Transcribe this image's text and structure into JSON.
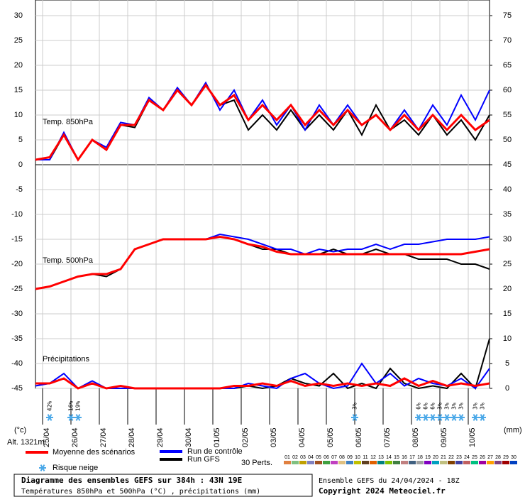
{
  "chart_data": {
    "type": "line",
    "xlim": [
      0,
      384
    ],
    "xticks": [
      {
        "value": 6,
        "label": "25/04"
      },
      {
        "value": 30,
        "label": "26/04"
      },
      {
        "value": 54,
        "label": "27/04"
      },
      {
        "value": 78,
        "label": "28/04"
      },
      {
        "value": 102,
        "label": "29/04"
      },
      {
        "value": 126,
        "label": "30/04"
      },
      {
        "value": 150,
        "label": "01/05"
      },
      {
        "value": 174,
        "label": "02/05"
      },
      {
        "value": 198,
        "label": "03/05"
      },
      {
        "value": 222,
        "label": "04/05"
      },
      {
        "value": 246,
        "label": "05/05"
      },
      {
        "value": 270,
        "label": "06/05"
      },
      {
        "value": 294,
        "label": "07/05"
      },
      {
        "value": 318,
        "label": "08/05"
      },
      {
        "value": 342,
        "label": "09/05"
      },
      {
        "value": 366,
        "label": "10/05"
      }
    ],
    "ylim": [
      -45,
      30
    ],
    "yticks": [
      30,
      25,
      20,
      15,
      10,
      5,
      0,
      -5,
      -10,
      -15,
      -20,
      -25,
      -30,
      -35,
      -40,
      -45
    ],
    "y2lim": [
      0,
      75
    ],
    "y2ticks": [
      75,
      70,
      65,
      60,
      55,
      50,
      45,
      40,
      35,
      30,
      25,
      20,
      15,
      10,
      5,
      0
    ],
    "ylabel": "(°c)",
    "y2label": "(mm)",
    "altitude": "Alt. 1321m",
    "grid": true,
    "x": [
      0,
      12,
      24,
      36,
      48,
      60,
      72,
      84,
      96,
      108,
      120,
      132,
      144,
      156,
      168,
      180,
      192,
      204,
      216,
      228,
      240,
      252,
      264,
      276,
      288,
      300,
      312,
      324,
      336,
      348,
      360,
      372,
      384
    ],
    "panels": [
      {
        "label": "Temp. 850hPa",
        "series": [
          {
            "color": "#000000",
            "values": [
              1,
              1,
              6,
              1,
              5,
              3,
              8,
              7.5,
              13,
              11,
              15,
              12,
              16,
              12,
              13,
              7,
              10,
              7,
              11,
              7,
              10,
              7,
              11,
              6,
              12,
              7,
              9,
              6,
              10,
              6,
              9,
              5,
              10
            ]
          },
          {
            "color": "#0000ff",
            "values": [
              1,
              1,
              6.5,
              1,
              5,
              3.5,
              8.5,
              8,
              13.5,
              11,
              15.5,
              12,
              16.5,
              11,
              15,
              9,
              13,
              8,
              12,
              7,
              12,
              8,
              12,
              8,
              10,
              7,
              11,
              7,
              12,
              8,
              14,
              9,
              15
            ]
          },
          {
            "color": "#ff0000",
            "values": [
              1,
              1.5,
              6,
              1,
              5,
              3,
              8,
              8,
              13,
              11,
              15,
              12,
              16,
              12,
              14,
              9,
              12,
              9,
              12,
              8,
              11,
              8,
              11,
              8,
              10,
              7,
              10,
              7,
              10,
              7,
              10,
              7,
              9
            ]
          }
        ]
      },
      {
        "label": "Temp. 500hPa",
        "series": [
          {
            "color": "#000000",
            "values": [
              -25,
              -24.5,
              -23.5,
              -22.5,
              -22,
              -22.5,
              -21,
              -17,
              -16,
              -15,
              -15,
              -15,
              -15,
              -14.5,
              -15,
              -16,
              -17,
              -17,
              -18,
              -18,
              -18,
              -17,
              -18,
              -18,
              -17,
              -18,
              -18,
              -19,
              -19,
              -19,
              -20,
              -20,
              -21
            ]
          },
          {
            "color": "#0000ff",
            "values": [
              -25,
              -24.5,
              -23.5,
              -22.5,
              -22,
              -22,
              -21,
              -17,
              -16,
              -15,
              -15,
              -15,
              -15,
              -14,
              -14.5,
              -15,
              -16,
              -17,
              -17,
              -18,
              -17,
              -17.5,
              -17,
              -17,
              -16,
              -17,
              -16,
              -16,
              -15.5,
              -15,
              -15,
              -15,
              -14.5
            ]
          },
          {
            "color": "#ff0000",
            "values": [
              -25,
              -24.5,
              -23.5,
              -22.5,
              -22,
              -22,
              -21,
              -17,
              -16,
              -15,
              -15,
              -15,
              -15,
              -14.5,
              -15,
              -16,
              -16.5,
              -17.5,
              -18,
              -18,
              -18,
              -18,
              -18,
              -18,
              -18,
              -18,
              -18,
              -18,
              -18,
              -18,
              -18,
              -17.5,
              -17
            ]
          }
        ]
      },
      {
        "label": "Précipitations",
        "axis": "y2",
        "series": [
          {
            "color": "#000000",
            "values": [
              1,
              1,
              2,
              0,
              1,
              0,
              0,
              0,
              0,
              0,
              0,
              0,
              0,
              0,
              0,
              0.5,
              0,
              0.5,
              2,
              1,
              0.5,
              3,
              0,
              1,
              0,
              4,
              1,
              0,
              0.5,
              0,
              3,
              0,
              10
            ]
          },
          {
            "color": "#0000ff",
            "values": [
              0.5,
              1,
              3,
              0,
              1.5,
              0,
              0,
              0,
              0,
              0,
              0,
              0,
              0,
              0,
              0,
              1,
              0.5,
              0,
              2,
              3,
              1,
              0,
              0.5,
              5,
              1,
              3,
              0.5,
              2,
              1,
              0.5,
              2,
              0,
              4
            ]
          },
          {
            "color": "#ff0000",
            "values": [
              1,
              1,
              2,
              0,
              1,
              0,
              0.5,
              0,
              0,
              0,
              0,
              0,
              0,
              0,
              0.5,
              0.5,
              1,
              0.5,
              1.5,
              0.5,
              1,
              0.5,
              1,
              0.5,
              1,
              0.5,
              2,
              0.5,
              1.5,
              0.5,
              1,
              0.5,
              1
            ]
          }
        ]
      }
    ],
    "snow_risk": {
      "x": [
        12,
        30,
        36,
        270,
        324,
        330,
        336,
        342,
        348,
        354,
        360,
        372,
        378
      ],
      "values": [
        42,
        16,
        19,
        3,
        6,
        6,
        6,
        3,
        3,
        3,
        3,
        3,
        3
      ],
      "value_labels": [
        "42%",
        "16%",
        "19%",
        "3%",
        "6%",
        "6%",
        "6%",
        "3%",
        "3%",
        "3%",
        "3%",
        "3%",
        "3%"
      ]
    },
    "legend": [
      {
        "name": "Moyenne des scénarios",
        "color": "#ff0000"
      },
      {
        "name": "Run de contrôle",
        "color": "#0000ff"
      },
      {
        "name": "Run GFS",
        "color": "#000000"
      }
    ],
    "snow_label": "Risque neige",
    "perts": {
      "label": "30 Perts.",
      "numbers": [
        "01",
        "02",
        "03",
        "04",
        "05",
        "06",
        "07",
        "08",
        "09",
        "10",
        "11",
        "12",
        "13",
        "14",
        "15",
        "16",
        "17",
        "18",
        "19",
        "20",
        "21",
        "22",
        "23",
        "24",
        "25",
        "26",
        "27",
        "28",
        "29",
        "30"
      ],
      "colors": [
        "#e08040",
        "#80c080",
        "#c0a000",
        "#8080c0",
        "#a05020",
        "#40a040",
        "#c040c0",
        "#e0c080",
        "#4080c0",
        "#c0c000",
        "#604020",
        "#e06000",
        "#008080",
        "#80c000",
        "#408040",
        "#c08080",
        "#406080",
        "#a0a0a0",
        "#8000c0",
        "#00a0c0",
        "#c0c080",
        "#804000",
        "#4040a0",
        "#c06060",
        "#00c080",
        "#a000a0",
        "#ffa000",
        "#804080",
        "#a00000",
        "#0040c0"
      ]
    },
    "footer": {
      "title": "Diagramme des ensembles GEFS sur 384h : 43N 19E",
      "subtitle": "Températures 850hPa et 500hPa (°C) , précipitations (mm)",
      "run": "Ensemble GEFS du 24/04/2024 - 18Z",
      "copyright": "Copyright 2024 Meteociel.fr"
    }
  }
}
